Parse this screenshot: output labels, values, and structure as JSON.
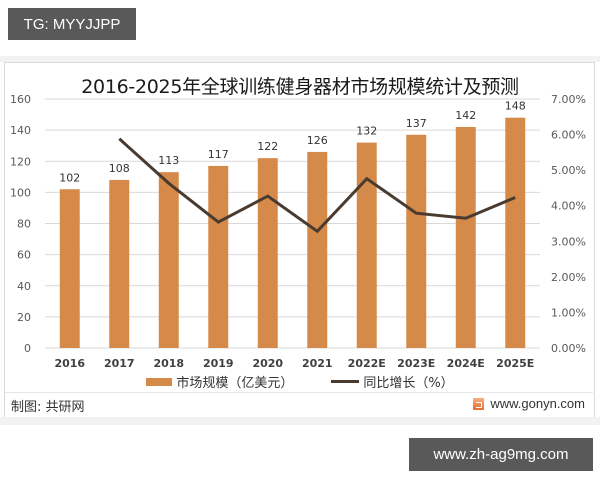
{
  "badges": {
    "top_left": "TG: MYYJJPP",
    "bottom_right": "www.zh-ag9mg.com"
  },
  "footer": {
    "credit": "制图: 共研网",
    "site": "www.gonyn.com",
    "logo_icon": "gonyn-logo-icon"
  },
  "colors": {
    "bar": "#D68A4A",
    "line": "#4A3B30",
    "grid": "#d9d9d9",
    "axis_text": "#595959"
  },
  "chart_data": {
    "type": "bar",
    "combo": "bar+line (dual axis)",
    "title": "2016-2025年全球训练健身器材市场规模统计及预测",
    "xlabel": "",
    "ylabel": "",
    "categories": [
      "2016",
      "2017",
      "2018",
      "2019",
      "2020",
      "2021",
      "2022E",
      "2023E",
      "2024E",
      "2025E"
    ],
    "series": [
      {
        "name": "市场规模（亿美元）",
        "type": "bar",
        "axis": "left",
        "values": [
          102,
          108,
          113,
          117,
          122,
          126,
          132,
          137,
          142,
          148
        ],
        "data_labels": [
          "102",
          "108",
          "113",
          "117",
          "122",
          "126",
          "132",
          "137",
          "142",
          "148"
        ]
      },
      {
        "name": "同比增长（%）",
        "type": "line",
        "axis": "right",
        "values": [
          null,
          5.88,
          4.63,
          3.54,
          4.27,
          3.28,
          4.76,
          3.79,
          3.65,
          4.23
        ]
      }
    ],
    "ylim": [
      0,
      160
    ],
    "y_ticks": [
      "0",
      "20",
      "40",
      "60",
      "80",
      "100",
      "120",
      "140",
      "160"
    ],
    "y2lim": [
      0,
      7
    ],
    "y2_ticks": [
      "0.00%",
      "1.00%",
      "2.00%",
      "3.00%",
      "4.00%",
      "5.00%",
      "6.00%",
      "7.00%"
    ],
    "grid": true,
    "legend_position": "bottom",
    "legend": [
      "市场规模（亿美元）",
      "同比增长（%）"
    ]
  }
}
